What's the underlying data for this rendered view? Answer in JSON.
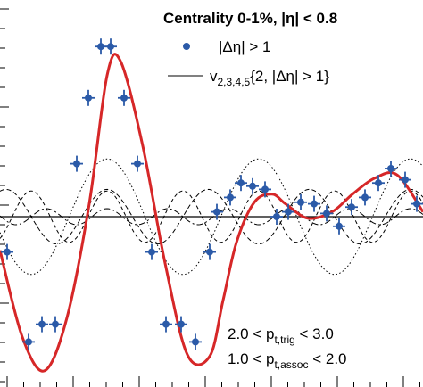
{
  "chart_data": {
    "type": "scatter",
    "title": "Centrality 0-1%, |η| < 0.8",
    "xlabel": "",
    "ylabel": "",
    "xlim": [
      0,
      474
    ],
    "ylim": [
      -1,
      1
    ],
    "grid": false,
    "legend_position": "top-right",
    "legend": {
      "marker_label": "|Δη| > 1",
      "line_label_main": "v",
      "line_label_sub": "2,3,4,5",
      "line_label_rest": "{2, |Δη| > 1}"
    },
    "annotations": {
      "trig": {
        "pre": "2.0 < p",
        "sub": "t,trig",
        "post": " < 3.0"
      },
      "assoc": {
        "pre": "1.0 < p",
        "sub": "t,assoc",
        "post": " < 2.0"
      }
    },
    "baseline": 0,
    "fit": {
      "name": "v2,3,4,5 sum",
      "color": "#d62728",
      "x": [
        0,
        25,
        50,
        75,
        100,
        120,
        135,
        160,
        185,
        210,
        235,
        250,
        265,
        285,
        305,
        320,
        345,
        372,
        395,
        420,
        445,
        474
      ],
      "y": [
        -0.21,
        -0.75,
        -0.96,
        -0.63,
        0.08,
        0.88,
        0.97,
        0.44,
        -0.29,
        -0.86,
        -0.87,
        -0.52,
        -0.16,
        0.09,
        0.14,
        0.08,
        -0.01,
        0.03,
        0.14,
        0.24,
        0.26,
        0.03
      ]
    },
    "series": [
      {
        "name": "|Δη| > 1",
        "color": "#2b5aa8",
        "x": [
          8,
          32,
          47,
          62,
          86,
          99,
          113,
          124,
          139,
          154,
          170,
          186,
          203,
          219,
          235,
          243,
          258,
          270,
          283,
          297,
          310,
          323,
          337,
          352,
          366,
          380,
          394,
          409,
          424,
          438,
          454,
          467
        ],
        "y": [
          -0.22,
          -0.78,
          -0.67,
          -0.67,
          0.33,
          0.74,
          1.06,
          1.06,
          0.74,
          0.33,
          -0.22,
          -0.67,
          -0.67,
          -0.78,
          -0.22,
          0.03,
          0.12,
          0.21,
          0.19,
          0.17,
          0.0,
          0.03,
          0.09,
          0.08,
          0.02,
          -0.06,
          0.06,
          0.12,
          0.21,
          0.3,
          0.23,
          0.08
        ]
      }
    ],
    "components": [
      {
        "name": "v2",
        "amplitude": 0.36,
        "frequency": 2
      },
      {
        "name": "v3",
        "amplitude": 0.17,
        "frequency": 3
      },
      {
        "name": "v4",
        "amplitude": 0.16,
        "frequency": 4
      },
      {
        "name": "v5",
        "amplitude": 0.05,
        "frequency": 5
      }
    ]
  }
}
